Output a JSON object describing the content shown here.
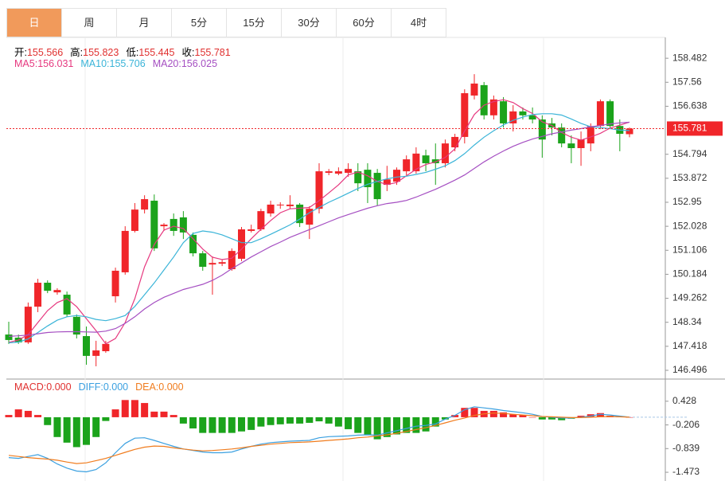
{
  "tabs": [
    "日",
    "周",
    "月",
    "5分",
    "15分",
    "30分",
    "60分",
    "4时"
  ],
  "active_tab": 0,
  "chart_data": [
    {
      "type": "candlestick",
      "ohlc_labels": [
        {
          "label": "开:",
          "value": 155.566
        },
        {
          "label": "高:",
          "value": 155.823
        },
        {
          "label": "低:",
          "value": 155.445
        },
        {
          "label": "收:",
          "value": 155.781
        }
      ],
      "up_color": "#f0262a",
      "down_color": "#1ba31b",
      "label_color": "#e0302f",
      "open": [
        147.87,
        147.75,
        147.57,
        148.94,
        149.86,
        149.49,
        149.4,
        148.55,
        147.81,
        147.05,
        147.23,
        149.34,
        150.26,
        151.85,
        152.67,
        153.01,
        152.03,
        152.31,
        152.37,
        151.7,
        150.99,
        150.56,
        150.59,
        150.38,
        150.78,
        151.85,
        151.91,
        152.52,
        152.83,
        152.8,
        152.86,
        152.09,
        152.7,
        154.08,
        154.05,
        154.08,
        154.14,
        154.2,
        154.08,
        153.62,
        153.74,
        154.14,
        154.14,
        154.75,
        154.6,
        154.45,
        155.06,
        155.46,
        157.05,
        157.45,
        156.29,
        156.83,
        155.98,
        156.44,
        156.29,
        156.13,
        155.98,
        155.82,
        155.21,
        155.03,
        155.21,
        155.88,
        156.83,
        155.88,
        155.566
      ],
      "high": [
        148.36,
        147.87,
        149.1,
        150.01,
        149.95,
        149.65,
        149.52,
        148.64,
        148.18,
        147.63,
        147.63,
        150.44,
        152.03,
        152.92,
        153.22,
        153.25,
        152.15,
        152.52,
        152.61,
        151.79,
        151.08,
        150.87,
        150.75,
        151.18,
        152.0,
        152.09,
        152.7,
        153.01,
        152.95,
        153.22,
        152.92,
        152.8,
        154.45,
        154.23,
        154.29,
        154.45,
        154.45,
        154.45,
        154.23,
        154.35,
        154.29,
        154.75,
        155.06,
        154.97,
        155.21,
        155.36,
        155.58,
        157.29,
        157.87,
        157.57,
        157.05,
        156.99,
        156.68,
        156.59,
        156.59,
        156.29,
        156.19,
        155.98,
        155.52,
        155.67,
        155.98,
        156.9,
        156.9,
        156.13,
        155.823
      ],
      "low": [
        147.51,
        147.51,
        147.51,
        148.73,
        149.46,
        149.4,
        148.55,
        147.72,
        146.71,
        146.65,
        147.17,
        149.1,
        150.17,
        151.79,
        152.52,
        151.08,
        151.85,
        151.66,
        151.54,
        150.87,
        150.32,
        149.4,
        150.5,
        150.32,
        150.69,
        151.79,
        151.85,
        152.4,
        152.7,
        152.7,
        152.0,
        151.54,
        152.52,
        153.99,
        153.99,
        153.93,
        153.38,
        152.92,
        152.83,
        153.38,
        153.62,
        153.99,
        154.05,
        154.14,
        153.62,
        154.29,
        154.91,
        155.21,
        156.9,
        156.13,
        156.13,
        155.82,
        155.67,
        156.13,
        155.98,
        154.66,
        155.52,
        155.06,
        154.45,
        154.35,
        154.91,
        155.76,
        155.76,
        154.91,
        155.445
      ],
      "close": [
        147.66,
        147.57,
        148.94,
        149.86,
        149.55,
        149.58,
        148.64,
        147.87,
        147.05,
        147.26,
        147.51,
        150.32,
        151.85,
        152.67,
        153.07,
        151.18,
        152.09,
        151.85,
        151.79,
        150.99,
        150.47,
        150.62,
        150.65,
        151.08,
        151.91,
        151.91,
        152.61,
        152.86,
        152.86,
        152.86,
        152.15,
        152.7,
        154.14,
        154.14,
        154.14,
        154.23,
        153.68,
        153.53,
        153.07,
        153.83,
        154.2,
        154.6,
        154.82,
        154.45,
        154.45,
        155.21,
        155.46,
        157.14,
        157.51,
        156.29,
        156.9,
        155.98,
        156.44,
        156.29,
        156.13,
        155.36,
        155.82,
        155.21,
        155.03,
        155.36,
        155.88,
        156.83,
        155.88,
        155.58,
        155.781
      ],
      "series": [
        {
          "name": "MA5:",
          "legend_value": "156.031",
          "color": "#e6387f",
          "values": [
            147.57,
            147.66,
            147.87,
            148.33,
            148.79,
            149.1,
            149.25,
            148.94,
            148.48,
            148.02,
            147.51,
            147.72,
            148.33,
            149.25,
            150.47,
            151.33,
            151.88,
            152.03,
            151.94,
            151.55,
            151.15,
            150.84,
            150.75,
            150.8,
            151.15,
            151.55,
            151.91,
            152.25,
            152.55,
            152.7,
            152.72,
            152.75,
            153.01,
            153.31,
            153.62,
            154.0,
            154.11,
            153.97,
            153.75,
            153.63,
            153.71,
            153.97,
            154.22,
            154.4,
            154.5,
            154.67,
            155.0,
            155.68,
            156.32,
            156.68,
            156.82,
            156.89,
            156.78,
            156.55,
            156.36,
            156.04,
            155.9,
            155.63,
            155.45,
            155.34,
            155.46,
            155.6,
            155.8,
            155.91,
            156.031
          ]
        },
        {
          "name": "MA10:",
          "legend_value": "155.706",
          "color": "#3ab4d8",
          "values": [
            147.55,
            147.58,
            147.7,
            147.95,
            148.2,
            148.42,
            148.55,
            148.6,
            148.55,
            148.45,
            148.4,
            148.48,
            148.6,
            148.95,
            149.4,
            149.85,
            150.35,
            150.85,
            151.4,
            151.75,
            151.85,
            151.8,
            151.7,
            151.55,
            151.4,
            151.4,
            151.55,
            151.72,
            151.9,
            152.08,
            152.3,
            152.55,
            152.75,
            152.95,
            153.12,
            153.3,
            153.48,
            153.64,
            153.75,
            153.85,
            153.92,
            153.95,
            154.02,
            154.1,
            154.22,
            154.35,
            154.55,
            154.82,
            155.15,
            155.45,
            155.7,
            155.92,
            156.1,
            156.22,
            156.32,
            156.35,
            156.35,
            156.3,
            156.15,
            155.98,
            155.85,
            155.82,
            155.78,
            155.72,
            155.706
          ]
        },
        {
          "name": "MA20:",
          "legend_value": "156.025",
          "color": "#a54fc2",
          "values": [
            147.8,
            147.82,
            147.85,
            147.9,
            147.95,
            147.97,
            147.98,
            147.98,
            147.97,
            147.96,
            148.0,
            148.1,
            148.3,
            148.55,
            148.85,
            149.1,
            149.3,
            149.45,
            149.6,
            149.7,
            149.8,
            149.95,
            150.15,
            150.4,
            150.62,
            150.85,
            151.05,
            151.25,
            151.42,
            151.6,
            151.75,
            151.9,
            152.05,
            152.2,
            152.35,
            152.48,
            152.6,
            152.72,
            152.82,
            152.9,
            152.95,
            153.02,
            153.15,
            153.3,
            153.45,
            153.62,
            153.8,
            154.0,
            154.25,
            154.5,
            154.72,
            154.92,
            155.1,
            155.25,
            155.38,
            155.48,
            155.58,
            155.65,
            155.72,
            155.78,
            155.85,
            155.9,
            155.96,
            156.0,
            156.025
          ]
        }
      ],
      "last_price": 155.781,
      "ylim": [
        146.19,
        159.19
      ],
      "yticks": [
        158.482,
        157.56,
        156.638,
        154.794,
        153.872,
        152.95,
        152.028,
        151.106,
        150.184,
        149.262,
        148.34,
        147.418,
        146.496
      ]
    },
    {
      "type": "macd",
      "histogram_name": "MACD:",
      "histogram_legend_value": "0.000",
      "histogram_color": "#e0302f",
      "up_color": "#f0262a",
      "down_color": "#1ba31b",
      "histogram": [
        0.06,
        0.21,
        0.17,
        0.06,
        -0.21,
        -0.53,
        -0.68,
        -0.8,
        -0.74,
        -0.53,
        -0.1,
        0.21,
        0.46,
        0.46,
        0.38,
        0.15,
        0.15,
        0.06,
        -0.17,
        -0.3,
        -0.42,
        -0.42,
        -0.42,
        -0.42,
        -0.38,
        -0.34,
        -0.25,
        -0.21,
        -0.19,
        -0.17,
        -0.17,
        -0.15,
        -0.11,
        -0.17,
        -0.25,
        -0.32,
        -0.42,
        -0.46,
        -0.59,
        -0.53,
        -0.46,
        -0.42,
        -0.42,
        -0.38,
        -0.25,
        -0.06,
        0.06,
        0.25,
        0.25,
        0.17,
        0.17,
        0.13,
        0.08,
        0.06,
        0.0,
        -0.06,
        -0.06,
        -0.08,
        -0.04,
        0.04,
        0.08,
        0.11,
        0.04,
        0.02,
        0.0
      ],
      "series": [
        {
          "name": "DIFF:",
          "legend_value": "0.000",
          "color": "#3ba0e0",
          "values": [
            -1.08,
            -1.1,
            -1.05,
            -1.0,
            -1.1,
            -1.25,
            -1.36,
            -1.44,
            -1.46,
            -1.4,
            -1.22,
            -0.95,
            -0.7,
            -0.56,
            -0.55,
            -0.62,
            -0.7,
            -0.78,
            -0.85,
            -0.89,
            -0.93,
            -0.95,
            -0.95,
            -0.93,
            -0.85,
            -0.78,
            -0.72,
            -0.68,
            -0.66,
            -0.64,
            -0.63,
            -0.62,
            -0.55,
            -0.52,
            -0.51,
            -0.5,
            -0.48,
            -0.47,
            -0.48,
            -0.42,
            -0.36,
            -0.3,
            -0.24,
            -0.22,
            -0.18,
            -0.05,
            0.05,
            0.2,
            0.28,
            0.25,
            0.22,
            0.18,
            0.15,
            0.12,
            0.08,
            0.02,
            0.0,
            -0.02,
            -0.02,
            0.0,
            0.03,
            0.08,
            0.06,
            0.03,
            0.0
          ]
        },
        {
          "name": "DEA:",
          "legend_value": "0.000",
          "color": "#f07c1e",
          "values": [
            -1.02,
            -1.05,
            -1.08,
            -1.1,
            -1.12,
            -1.15,
            -1.2,
            -1.24,
            -1.22,
            -1.16,
            -1.1,
            -1.02,
            -0.94,
            -0.86,
            -0.8,
            -0.77,
            -0.78,
            -0.82,
            -0.85,
            -0.88,
            -0.9,
            -0.89,
            -0.87,
            -0.85,
            -0.82,
            -0.78,
            -0.75,
            -0.72,
            -0.7,
            -0.68,
            -0.67,
            -0.66,
            -0.64,
            -0.62,
            -0.6,
            -0.58,
            -0.55,
            -0.53,
            -0.5,
            -0.47,
            -0.43,
            -0.38,
            -0.33,
            -0.28,
            -0.22,
            -0.15,
            -0.08,
            -0.02,
            0.05,
            0.09,
            0.11,
            0.1,
            0.08,
            0.06,
            0.04,
            0.02,
            0.01,
            0.0,
            -0.01,
            -0.01,
            0.0,
            0.01,
            0.02,
            0.01,
            0.0
          ]
        }
      ],
      "ylim": [
        -1.706,
        0.978
      ],
      "yticks": [
        0.428,
        -0.206,
        -0.839,
        -1.473
      ]
    }
  ]
}
